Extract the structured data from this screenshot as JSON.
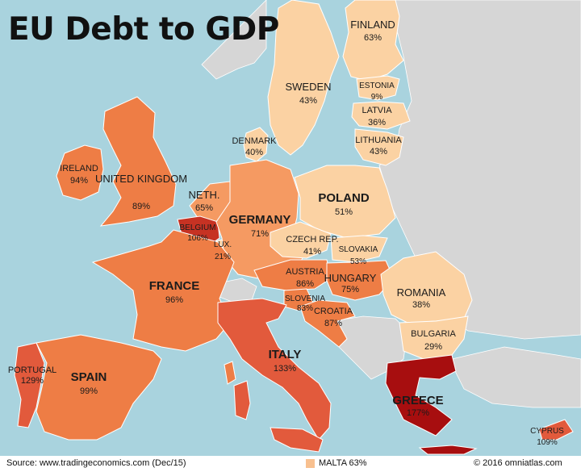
{
  "title": "EU Debt to GDP",
  "colors": {
    "sea": "#a9d3de",
    "non_eu_land": "#d6d6d6",
    "low": "#fbd2a3",
    "mid_low": "#f7b07c",
    "mid": "#f59a62",
    "mid_high": "#ee7d45",
    "high": "#e25a3c",
    "very_high": "#c63223",
    "extreme": "#a70e0f"
  },
  "countries": [
    {
      "name": "FINLAND",
      "value": "63%"
    },
    {
      "name": "SWEDEN",
      "value": "43%"
    },
    {
      "name": "ESTONIA",
      "value": "9%"
    },
    {
      "name": "LATVIA",
      "value": "36%"
    },
    {
      "name": "LITHUANIA",
      "value": "43%"
    },
    {
      "name": "DENMARK",
      "value": "40%"
    },
    {
      "name": "IRELAND",
      "value": "94%"
    },
    {
      "name": "UNITED KINGDOM",
      "value": "89%"
    },
    {
      "name": "NETH.",
      "value": "65%"
    },
    {
      "name": "BELGIUM",
      "value": "106%"
    },
    {
      "name": "LUX.",
      "value": "21%"
    },
    {
      "name": "GERMANY",
      "value": "71%"
    },
    {
      "name": "POLAND",
      "value": "51%"
    },
    {
      "name": "CZECH REP.",
      "value": "41%"
    },
    {
      "name": "SLOVAKIA",
      "value": "53%"
    },
    {
      "name": "AUSTRIA",
      "value": "86%"
    },
    {
      "name": "HUNGARY",
      "value": "75%"
    },
    {
      "name": "SLOVENIA",
      "value": "83%"
    },
    {
      "name": "CROATIA",
      "value": "87%"
    },
    {
      "name": "ROMANIA",
      "value": "38%"
    },
    {
      "name": "BULGARIA",
      "value": "29%"
    },
    {
      "name": "FRANCE",
      "value": "96%"
    },
    {
      "name": "ITALY",
      "value": "133%"
    },
    {
      "name": "PORTUGAL",
      "value": "129%"
    },
    {
      "name": "SPAIN",
      "value": "99%"
    },
    {
      "name": "GREECE",
      "value": "177%"
    },
    {
      "name": "CYPRUS",
      "value": "109%"
    }
  ],
  "malta": "MALTA 63%",
  "source": "Source: www.tradingeconomics.com (Dec/15)",
  "copyright": "© 2016 omniatlas.com"
}
